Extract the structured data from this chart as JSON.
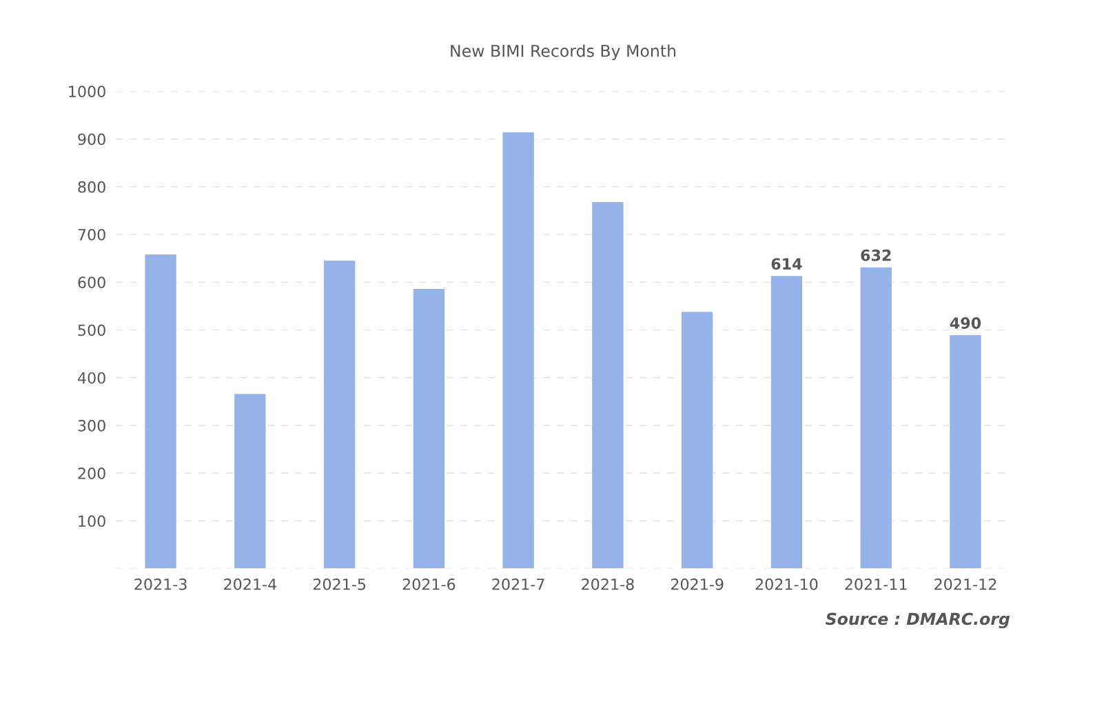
{
  "chart_data": {
    "type": "bar",
    "title": "New BIMI Records By Month",
    "categories": [
      "2021-3",
      "2021-4",
      "2021-5",
      "2021-6",
      "2021-7",
      "2021-8",
      "2021-9",
      "2021-10",
      "2021-11",
      "2021-12"
    ],
    "values": [
      659,
      367,
      646,
      587,
      915,
      769,
      539,
      614,
      632,
      490
    ],
    "value_labels": [
      null,
      null,
      null,
      null,
      null,
      null,
      null,
      "614",
      "632",
      "490"
    ],
    "color": "#95b3e8",
    "ylim": [
      0,
      1000
    ],
    "yticks": [
      {
        "value": 0,
        "label": null
      },
      100,
      200,
      300,
      400,
      500,
      600,
      700,
      800,
      900,
      1000
    ],
    "grid": "y",
    "line_style": "dashed",
    "legend": false,
    "annotations": [
      "Source : DMARC.org"
    ]
  }
}
